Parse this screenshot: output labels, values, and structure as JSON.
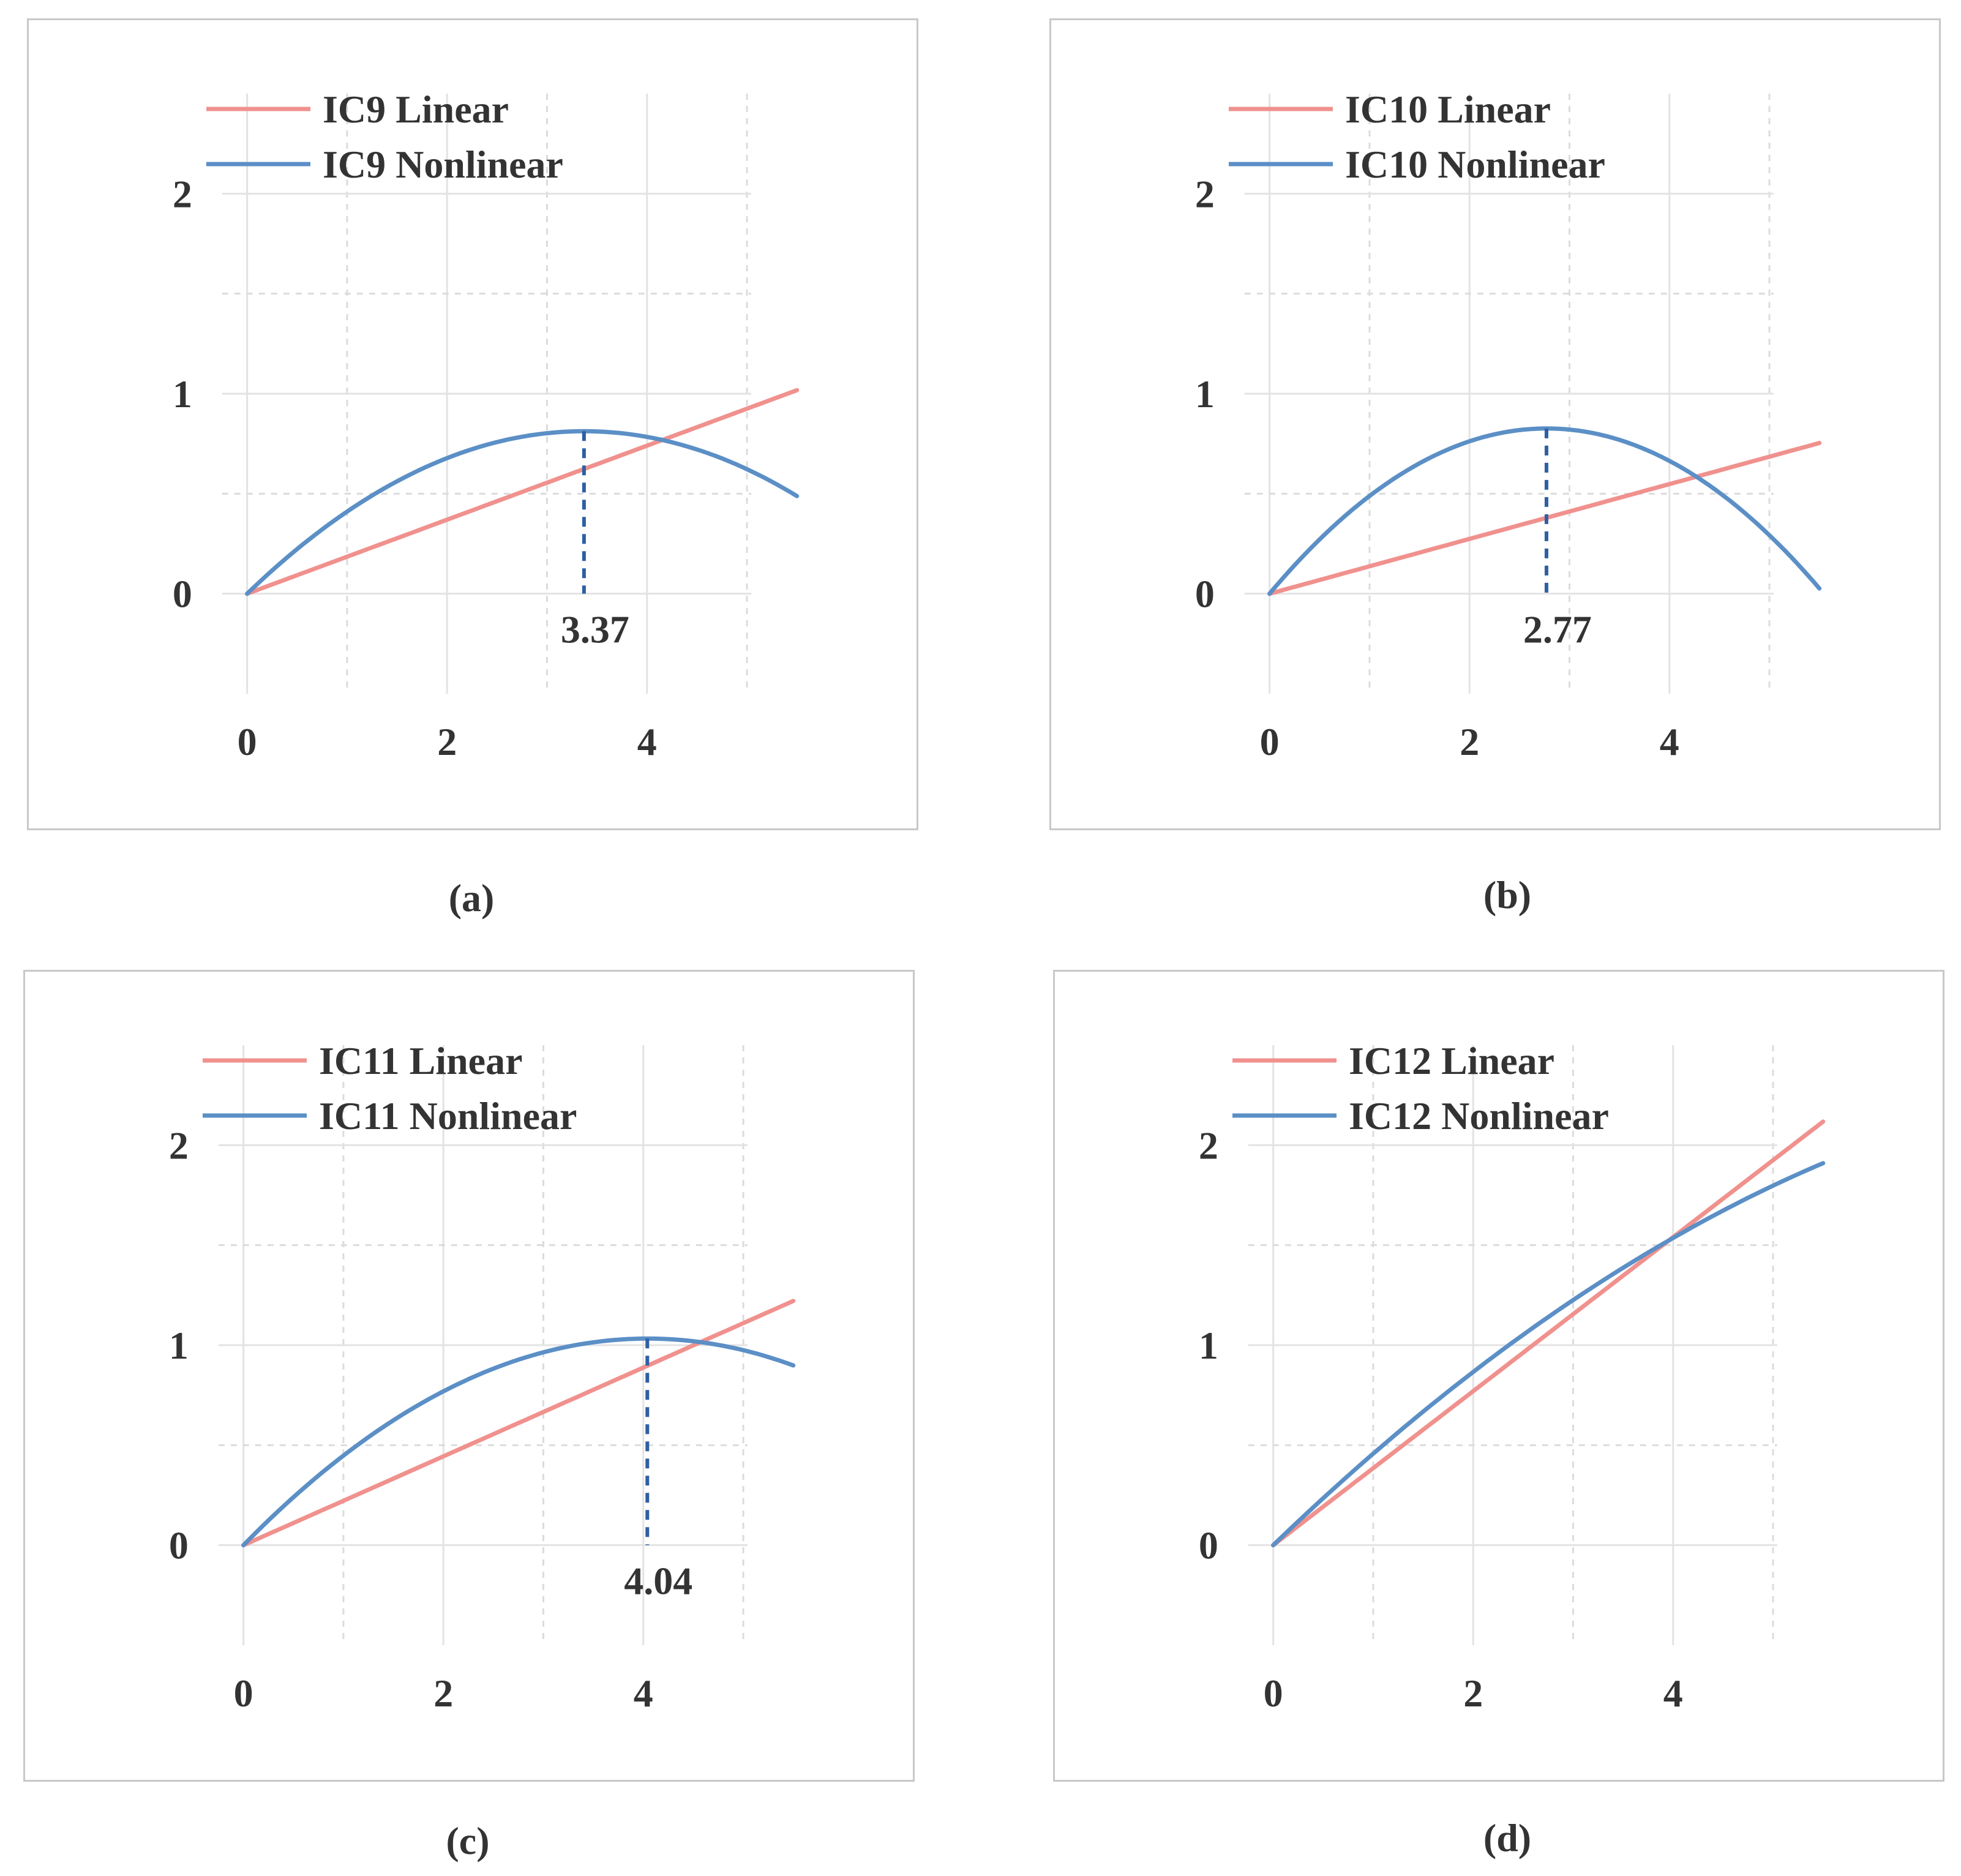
{
  "colors": {
    "linear": "#f0918e",
    "nonlinear": "#5b8fc6",
    "grid": "#e3e3e3",
    "grid_minor": "#dcdcdc",
    "annotation": "#2e5fa3"
  },
  "chart_data": [
    {
      "id": "a",
      "type": "line",
      "caption": "(a)",
      "xlim": [
        -0.5,
        5.9
      ],
      "ylim": [
        -0.5,
        2.5
      ],
      "xticks": [
        0,
        2,
        4
      ],
      "yticks": [
        0,
        1,
        2
      ],
      "series": [
        {
          "name": "IC9 Linear",
          "kind": "linear",
          "slope": 0.185
        },
        {
          "name": "IC9 Nonlinear",
          "kind": "quadratic",
          "a": -0.0715,
          "b": 0.482
        }
      ],
      "x_end": 5.5,
      "annotation": {
        "x": 3.37,
        "label": "3.37"
      }
    },
    {
      "id": "b",
      "type": "line",
      "caption": "(b)",
      "xlim": [
        -0.5,
        5.9
      ],
      "ylim": [
        -0.5,
        2.5
      ],
      "xticks": [
        0,
        2,
        4
      ],
      "yticks": [
        0,
        1,
        2
      ],
      "series": [
        {
          "name": "IC10 Linear",
          "kind": "linear",
          "slope": 0.137
        },
        {
          "name": "IC10 Nonlinear",
          "kind": "quadratic",
          "a": -0.1075,
          "b": 0.596
        }
      ],
      "x_end": 5.5,
      "annotation": {
        "x": 2.77,
        "label": "2.77"
      }
    },
    {
      "id": "c",
      "type": "line",
      "caption": "(c)",
      "xlim": [
        -0.5,
        5.9
      ],
      "ylim": [
        -0.5,
        2.5
      ],
      "xticks": [
        0,
        2,
        4
      ],
      "yticks": [
        0,
        1,
        2
      ],
      "series": [
        {
          "name": "IC11 Linear",
          "kind": "linear",
          "slope": 0.222
        },
        {
          "name": "IC11 Nonlinear",
          "kind": "quadratic",
          "a": -0.0632,
          "b": 0.511
        }
      ],
      "x_end": 5.5,
      "annotation": {
        "x": 4.04,
        "label": "4.04"
      }
    },
    {
      "id": "d",
      "type": "line",
      "caption": "(d)",
      "xlim": [
        -0.5,
        5.9
      ],
      "ylim": [
        -0.5,
        2.5
      ],
      "xticks": [
        0,
        2,
        4
      ],
      "yticks": [
        0,
        1,
        2
      ],
      "series": [
        {
          "name": "IC12 Linear",
          "kind": "linear",
          "slope": 0.385
        },
        {
          "name": "IC12 Nonlinear",
          "kind": "quadratic",
          "a": -0.0245,
          "b": 0.482
        }
      ],
      "x_end": 5.5,
      "annotation": null
    }
  ]
}
